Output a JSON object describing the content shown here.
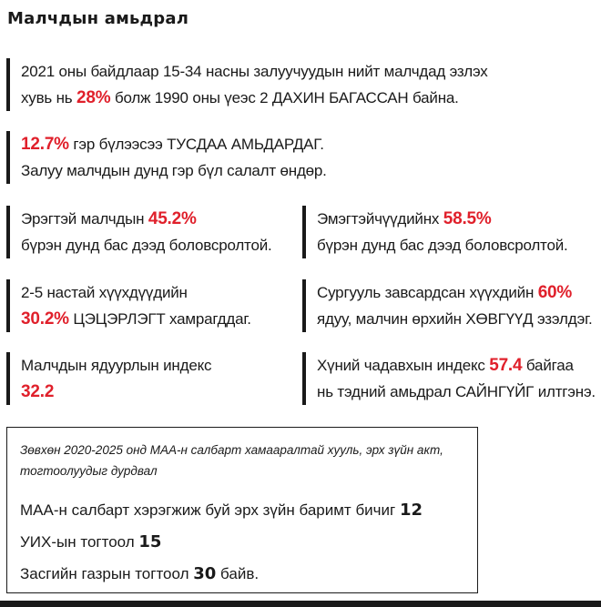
{
  "title": "Малчдын амьдрал",
  "blocks": [
    {
      "line1_pre": "2021 оны байдлаар 15-34 насны залуучуудын нийт малчдад эзлэх",
      "line2_pre": "хувь нь ",
      "highlight": "28%",
      "line2_post": " болж 1990 оны үеэс 2 ДАХИН БАГАССАН байна."
    },
    {
      "highlight": "12.7%",
      "line1_post": " гэр бүлээсээ ТУСДАА АМЬДАРДАГ.",
      "line2": "Залуу малчдын дунд гэр бүл салалт өндөр."
    },
    {
      "line1_pre": "Эрэгтэй малчдын ",
      "highlight": "45.2%",
      "line2": "бүрэн дунд бас дээд боловсролтой."
    },
    {
      "line1_pre": "Эмэгтэйчүүдийнх ",
      "highlight": "58.5%",
      "line2": "бүрэн дунд бас дээд боловсролтой."
    },
    {
      "line1": "2-5 настай хүүхдүүдийн",
      "highlight": "30.2%",
      "line2_post": " ЦЭЦЭРЛЭГТ хамрагддаг."
    },
    {
      "line1_pre": "Сургууль завсардсан хүүхдийн ",
      "highlight": "60%",
      "line2": "ядуу, малчин өрхийн ХӨВГҮҮД эзэлдэг."
    },
    {
      "line1": "Малчдын ядуурлын индекс",
      "highlight": "32.2"
    },
    {
      "line1_pre": "Хүний чадавхын индекс ",
      "highlight": "57.4",
      "line1_post": " байгаа",
      "line2": "нь тэдний амьдрал САЙНГҮЙГ илтгэнэ."
    }
  ],
  "box": {
    "note": "Зөвхөн 2020-2025 онд МАА-н салбарт хамааралтай хууль, эрх зүйн акт, тогтоолуудыг дурдвал",
    "rows": [
      {
        "label": "МАА-н салбарт хэрэгжиж буй эрх зүйн баримт бичиг ",
        "value": "12",
        "suffix": ""
      },
      {
        "label": "УИХ-ын тогтоол ",
        "value": "15",
        "suffix": ""
      },
      {
        "label": "Засгийн газрын тогтоол ",
        "value": "30",
        "suffix": " байв."
      }
    ]
  },
  "colors": {
    "highlight": "#e0202b",
    "text": "#1a1a1a"
  }
}
